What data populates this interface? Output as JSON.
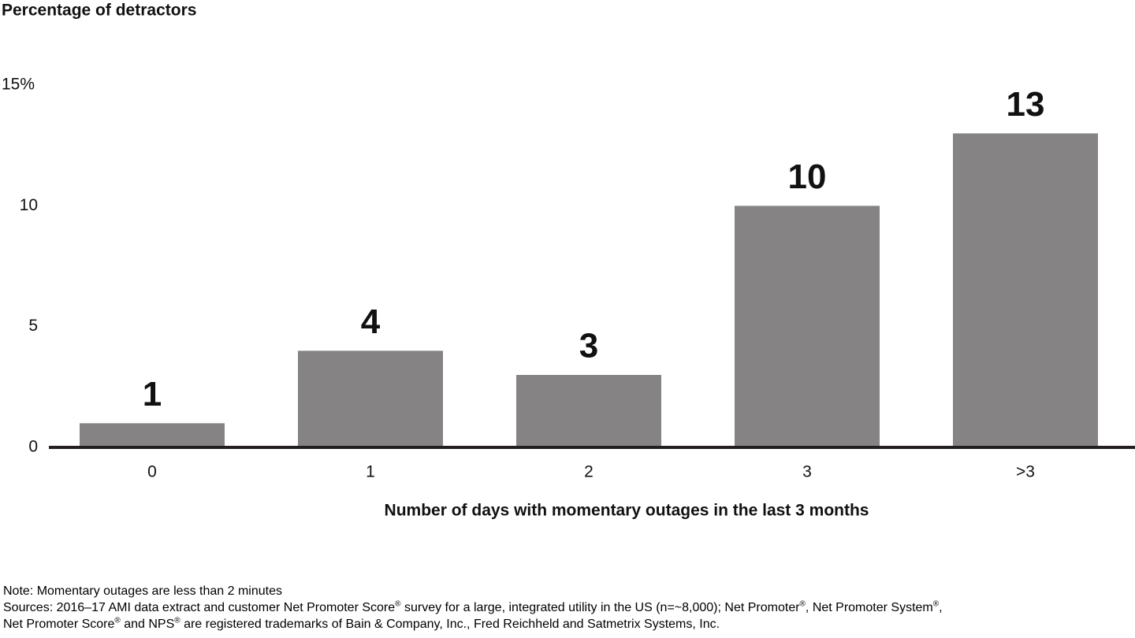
{
  "chart_data": {
    "type": "bar",
    "y_label": "Percentage of detractors",
    "x_label": "Number of days with momentary outages in the last 3 months",
    "categories": [
      "0",
      "1",
      "2",
      "3",
      ">3"
    ],
    "values": [
      1,
      4,
      3,
      10,
      13
    ],
    "color": "#858384",
    "ylim": [
      0,
      15
    ],
    "yticks": [
      0,
      5,
      10,
      {
        "value": 15,
        "label": "15%"
      }
    ],
    "grid": false
  },
  "notes": {
    "note": "Note: Momentary outages are less than 2 minutes",
    "sources": [
      "Sources: 2016–17 AMI data extract and customer Net Promoter Score® survey for a large, integrated utility in the US (n=~8,000); Net Promoter®, Net Promoter System®,",
      "Net Promoter Score® and NPS® are registered trademarks of Bain & Company, Inc., Fred Reichheld and Satmetrix Systems, Inc."
    ]
  }
}
